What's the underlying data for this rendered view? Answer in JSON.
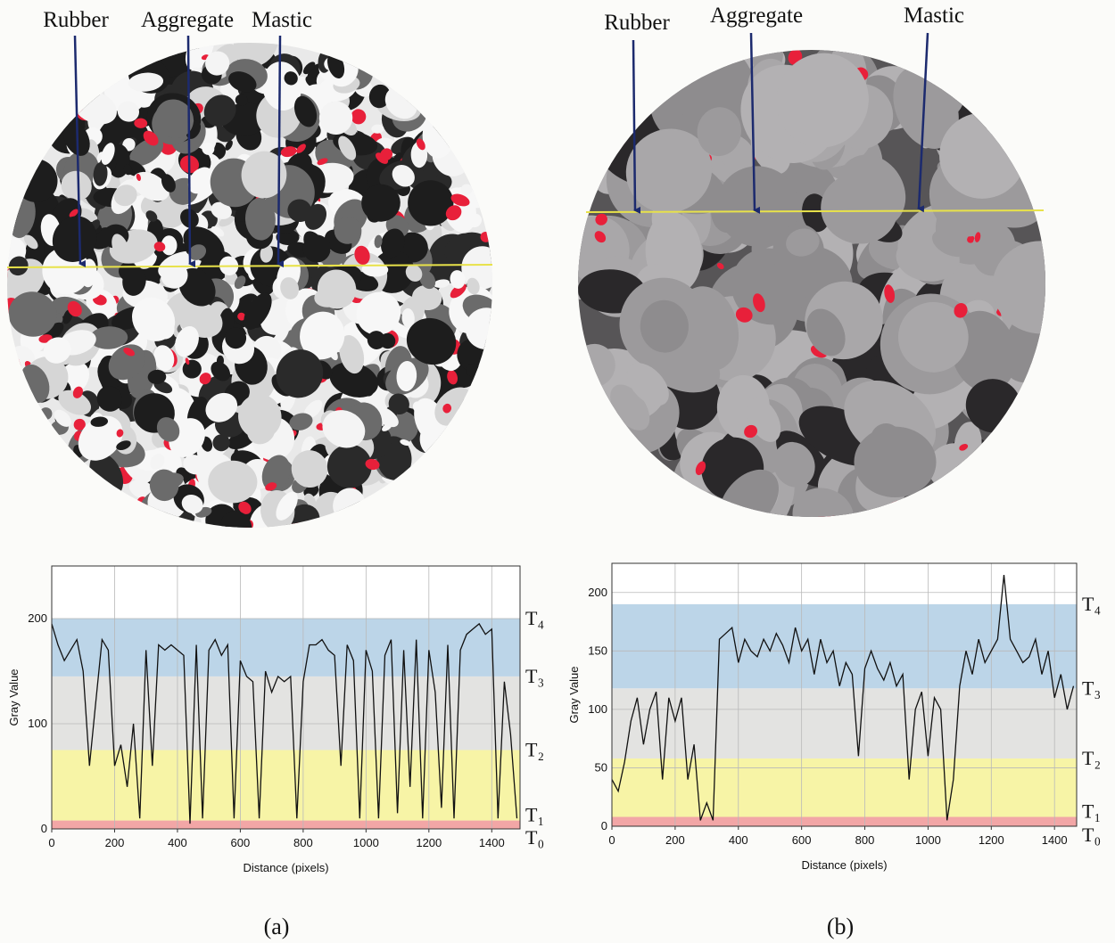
{
  "figure": {
    "panels": [
      {
        "annotations": [
          "Rubber",
          "Aggregate",
          "Mastic"
        ],
        "caption": "(a)"
      },
      {
        "annotations": [
          "Rubber",
          "Aggregate",
          "Mastic"
        ],
        "caption": "(b)"
      }
    ]
  },
  "chart_data": [
    {
      "type": "line",
      "x_label": "Distance (pixels)",
      "y_label": "Gray Value",
      "xlim": [
        0,
        1490
      ],
      "ylim": [
        0,
        250
      ],
      "xticks": [
        0,
        200,
        400,
        600,
        800,
        1000,
        1200,
        1400
      ],
      "yticks": [
        0,
        100,
        200
      ],
      "grid": true,
      "thresholds": [
        {
          "value": 0,
          "label": "T₀"
        },
        {
          "value": 8,
          "label": "T₁"
        },
        {
          "value": 75,
          "label": "T₂"
        },
        {
          "value": 145,
          "label": "T₃"
        },
        {
          "value": 200,
          "label": "T₄"
        }
      ],
      "band_colors": [
        "#f2a6a6",
        "#f7f4a6",
        "#e3e3e1",
        "#bcd5e8"
      ],
      "x": [
        0,
        20,
        40,
        60,
        80,
        100,
        120,
        140,
        160,
        180,
        200,
        220,
        240,
        260,
        280,
        300,
        320,
        340,
        360,
        380,
        400,
        420,
        440,
        460,
        480,
        500,
        520,
        540,
        560,
        580,
        600,
        620,
        640,
        660,
        680,
        700,
        720,
        740,
        760,
        780,
        800,
        820,
        840,
        860,
        880,
        900,
        920,
        940,
        960,
        980,
        1000,
        1020,
        1040,
        1060,
        1080,
        1100,
        1120,
        1140,
        1160,
        1180,
        1200,
        1220,
        1240,
        1260,
        1280,
        1300,
        1320,
        1340,
        1360,
        1380,
        1400,
        1420,
        1440,
        1460,
        1480
      ],
      "series": [
        {
          "color": "#111111",
          "values": [
            195,
            175,
            160,
            170,
            180,
            150,
            60,
            120,
            180,
            170,
            60,
            80,
            40,
            100,
            10,
            170,
            60,
            175,
            170,
            175,
            170,
            165,
            5,
            175,
            10,
            170,
            180,
            165,
            175,
            10,
            160,
            145,
            140,
            10,
            150,
            130,
            145,
            140,
            145,
            10,
            140,
            175,
            175,
            180,
            170,
            165,
            60,
            175,
            160,
            10,
            170,
            150,
            10,
            165,
            180,
            15,
            170,
            40,
            180,
            10,
            170,
            130,
            20,
            175,
            10,
            170,
            185,
            190,
            195,
            185,
            190,
            10,
            140,
            90,
            10
          ]
        }
      ]
    },
    {
      "type": "line",
      "x_label": "Distance (pixels)",
      "y_label": "Gray Value",
      "xlim": [
        0,
        1470
      ],
      "ylim": [
        0,
        225
      ],
      "xticks": [
        0,
        200,
        400,
        600,
        800,
        1000,
        1200,
        1400
      ],
      "yticks": [
        0,
        50,
        100,
        150,
        200
      ],
      "grid": true,
      "thresholds": [
        {
          "value": 0,
          "label": "T₀"
        },
        {
          "value": 8,
          "label": "T₁"
        },
        {
          "value": 58,
          "label": "T₂"
        },
        {
          "value": 118,
          "label": "T₃"
        },
        {
          "value": 190,
          "label": "T₄"
        }
      ],
      "band_colors": [
        "#f2a6a6",
        "#f7f4a6",
        "#e3e3e1",
        "#bcd5e8"
      ],
      "x": [
        0,
        20,
        40,
        60,
        80,
        100,
        120,
        140,
        160,
        180,
        200,
        220,
        240,
        260,
        280,
        300,
        320,
        340,
        360,
        380,
        400,
        420,
        440,
        460,
        480,
        500,
        520,
        540,
        560,
        580,
        600,
        620,
        640,
        660,
        680,
        700,
        720,
        740,
        760,
        780,
        800,
        820,
        840,
        860,
        880,
        900,
        920,
        940,
        960,
        980,
        1000,
        1020,
        1040,
        1060,
        1080,
        1100,
        1120,
        1140,
        1160,
        1180,
        1200,
        1220,
        1240,
        1260,
        1280,
        1300,
        1320,
        1340,
        1360,
        1380,
        1400,
        1420,
        1440,
        1460
      ],
      "series": [
        {
          "color": "#111111",
          "values": [
            40,
            30,
            55,
            90,
            110,
            70,
            100,
            115,
            40,
            110,
            90,
            110,
            40,
            70,
            5,
            20,
            5,
            160,
            165,
            170,
            140,
            160,
            150,
            145,
            160,
            150,
            165,
            155,
            140,
            170,
            150,
            160,
            130,
            160,
            140,
            150,
            120,
            140,
            130,
            60,
            135,
            150,
            135,
            125,
            140,
            120,
            130,
            40,
            100,
            115,
            60,
            110,
            100,
            5,
            40,
            120,
            150,
            130,
            160,
            140,
            150,
            160,
            215,
            160,
            150,
            140,
            145,
            160,
            130,
            150,
            110,
            130,
            100,
            120
          ]
        }
      ]
    }
  ]
}
